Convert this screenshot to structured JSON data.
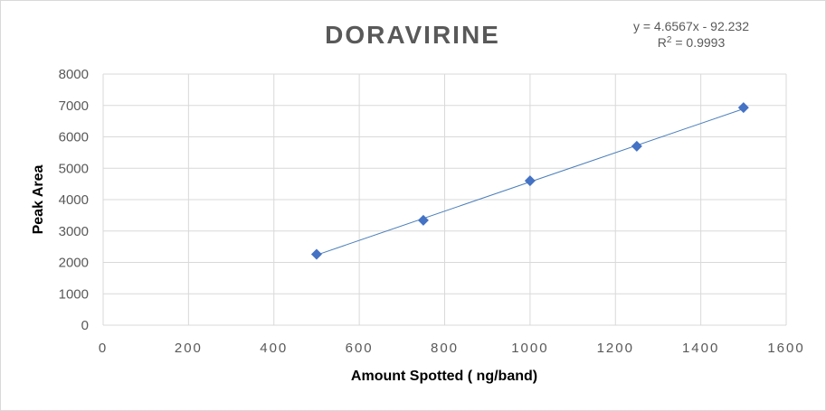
{
  "chart_data": {
    "type": "scatter",
    "title": "DORAVIRINE",
    "xlabel": "Amount Spotted ( ng/band)",
    "ylabel": "Peak Area",
    "xlim": [
      0,
      1600
    ],
    "ylim": [
      0,
      8000
    ],
    "x_ticks": [
      "0",
      "200",
      "400",
      "600",
      "800",
      "1000",
      "1200",
      "1400",
      "1600"
    ],
    "y_ticks": [
      "0",
      "1000",
      "2000",
      "3000",
      "4000",
      "5000",
      "6000",
      "7000",
      "8000"
    ],
    "grid": "on",
    "series": [
      {
        "x": [
          500,
          750,
          1000,
          1250,
          1500
        ],
        "y": [
          2260,
          3340,
          4600,
          5700,
          6930
        ],
        "marker": "diamond",
        "color": "#4472c4"
      }
    ],
    "trendline": {
      "type": "linear",
      "slope": 4.6567,
      "intercept": -92.232,
      "color": "#4a7ebb"
    },
    "annotations": {
      "equation": "y = 4.6567x - 92.232",
      "r_squared_label": "R",
      "r_squared_sup": "2",
      "r_squared_value": " = 0.9993"
    },
    "legend": "none"
  }
}
